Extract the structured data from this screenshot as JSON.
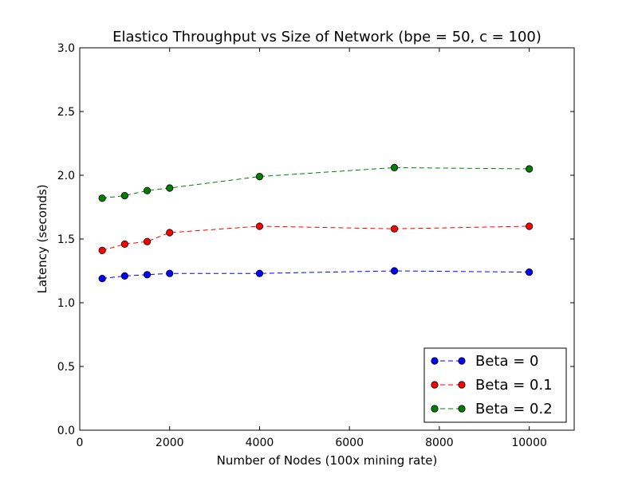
{
  "chart_data": {
    "type": "line",
    "title": "Elastico Throughput vs Size of Network (bpe = 50, c = 100)",
    "xlabel": "Number of Nodes (100x mining rate)",
    "ylabel": "Latency (seconds)",
    "xlim": [
      0,
      11000
    ],
    "ylim": [
      0.0,
      3.0
    ],
    "xticks": [
      0,
      2000,
      4000,
      6000,
      8000,
      10000
    ],
    "xtick_labels": [
      "0",
      "2000",
      "4000",
      "6000",
      "8000",
      "10000"
    ],
    "yticks": [
      0.0,
      0.5,
      1.0,
      1.5,
      2.0,
      2.5,
      3.0
    ],
    "ytick_labels": [
      "0.0",
      "0.5",
      "1.0",
      "1.5",
      "2.0",
      "2.5",
      "3.0"
    ],
    "grid": false,
    "legend_position": "bottom-right",
    "x": [
      500,
      1000,
      1500,
      2000,
      4000,
      7000,
      10000
    ],
    "series": [
      {
        "name": "Beta = 0",
        "color": "#0000ff",
        "values": [
          1.19,
          1.21,
          1.22,
          1.23,
          1.23,
          1.25,
          1.24
        ]
      },
      {
        "name": "Beta = 0.1",
        "color": "#ff0000",
        "values": [
          1.41,
          1.46,
          1.48,
          1.55,
          1.6,
          1.58,
          1.6
        ]
      },
      {
        "name": "Beta = 0.2",
        "color": "#008000",
        "values": [
          1.82,
          1.84,
          1.88,
          1.9,
          1.99,
          2.06,
          2.05
        ]
      }
    ]
  }
}
